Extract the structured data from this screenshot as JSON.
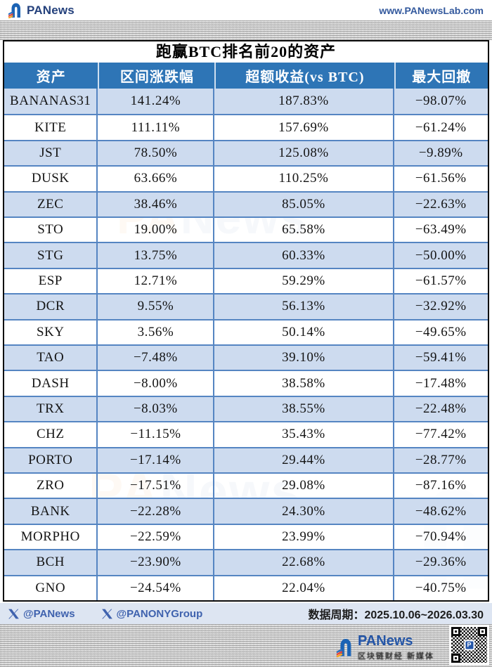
{
  "brand": {
    "name": "PANews",
    "name_pa": "PA",
    "name_news": "News",
    "site_url": "www.PANewsLab.com",
    "tagline": "区块链财经 新媒体",
    "qr_center_letter": "P"
  },
  "chart_data": {
    "type": "table",
    "title": "跑赢BTC排名前20的资产",
    "columns": [
      "资产",
      "区间涨跌幅",
      "超额收益(vs BTC)",
      "最大回撤"
    ],
    "rows": [
      [
        "BANANAS31",
        "141.24%",
        "187.83%",
        "−98.07%"
      ],
      [
        "KITE",
        "111.11%",
        "157.69%",
        "−61.24%"
      ],
      [
        "JST",
        "78.50%",
        "125.08%",
        "−9.89%"
      ],
      [
        "DUSK",
        "63.66%",
        "110.25%",
        "−61.56%"
      ],
      [
        "ZEC",
        "38.46%",
        "85.05%",
        "−22.63%"
      ],
      [
        "STO",
        "19.00%",
        "65.58%",
        "−63.49%"
      ],
      [
        "STG",
        "13.75%",
        "60.33%",
        "−50.00%"
      ],
      [
        "ESP",
        "12.71%",
        "59.29%",
        "−61.57%"
      ],
      [
        "DCR",
        "9.55%",
        "56.13%",
        "−32.92%"
      ],
      [
        "SKY",
        "3.56%",
        "50.14%",
        "−49.65%"
      ],
      [
        "TAO",
        "−7.48%",
        "39.10%",
        "−59.41%"
      ],
      [
        "DASH",
        "−8.00%",
        "38.58%",
        "−17.48%"
      ],
      [
        "TRX",
        "−8.03%",
        "38.55%",
        "−22.48%"
      ],
      [
        "CHZ",
        "−11.15%",
        "35.43%",
        "−77.42%"
      ],
      [
        "PORTO",
        "−17.14%",
        "29.44%",
        "−28.77%"
      ],
      [
        "ZRO",
        "−17.51%",
        "29.08%",
        "−87.16%"
      ],
      [
        "BANK",
        "−22.28%",
        "24.30%",
        "−48.62%"
      ],
      [
        "MORPHO",
        "−22.59%",
        "23.99%",
        "−70.94%"
      ],
      [
        "BCH",
        "−23.90%",
        "22.68%",
        "−29.36%"
      ],
      [
        "GNO",
        "−24.54%",
        "22.04%",
        "−40.75%"
      ]
    ]
  },
  "footer": {
    "handle_panews": "@PANews",
    "handle_panony": "@PANONYGroup",
    "period": "数据周期：2025.10.06~2026.03.30"
  },
  "colors": {
    "header_blue": "#2e75b6",
    "row_alt": "#cddbef",
    "grid_line": "#5585c2",
    "footer_bg": "#dde5f2",
    "handle_blue": "#3f62ae",
    "url_blue": "#33599d"
  }
}
